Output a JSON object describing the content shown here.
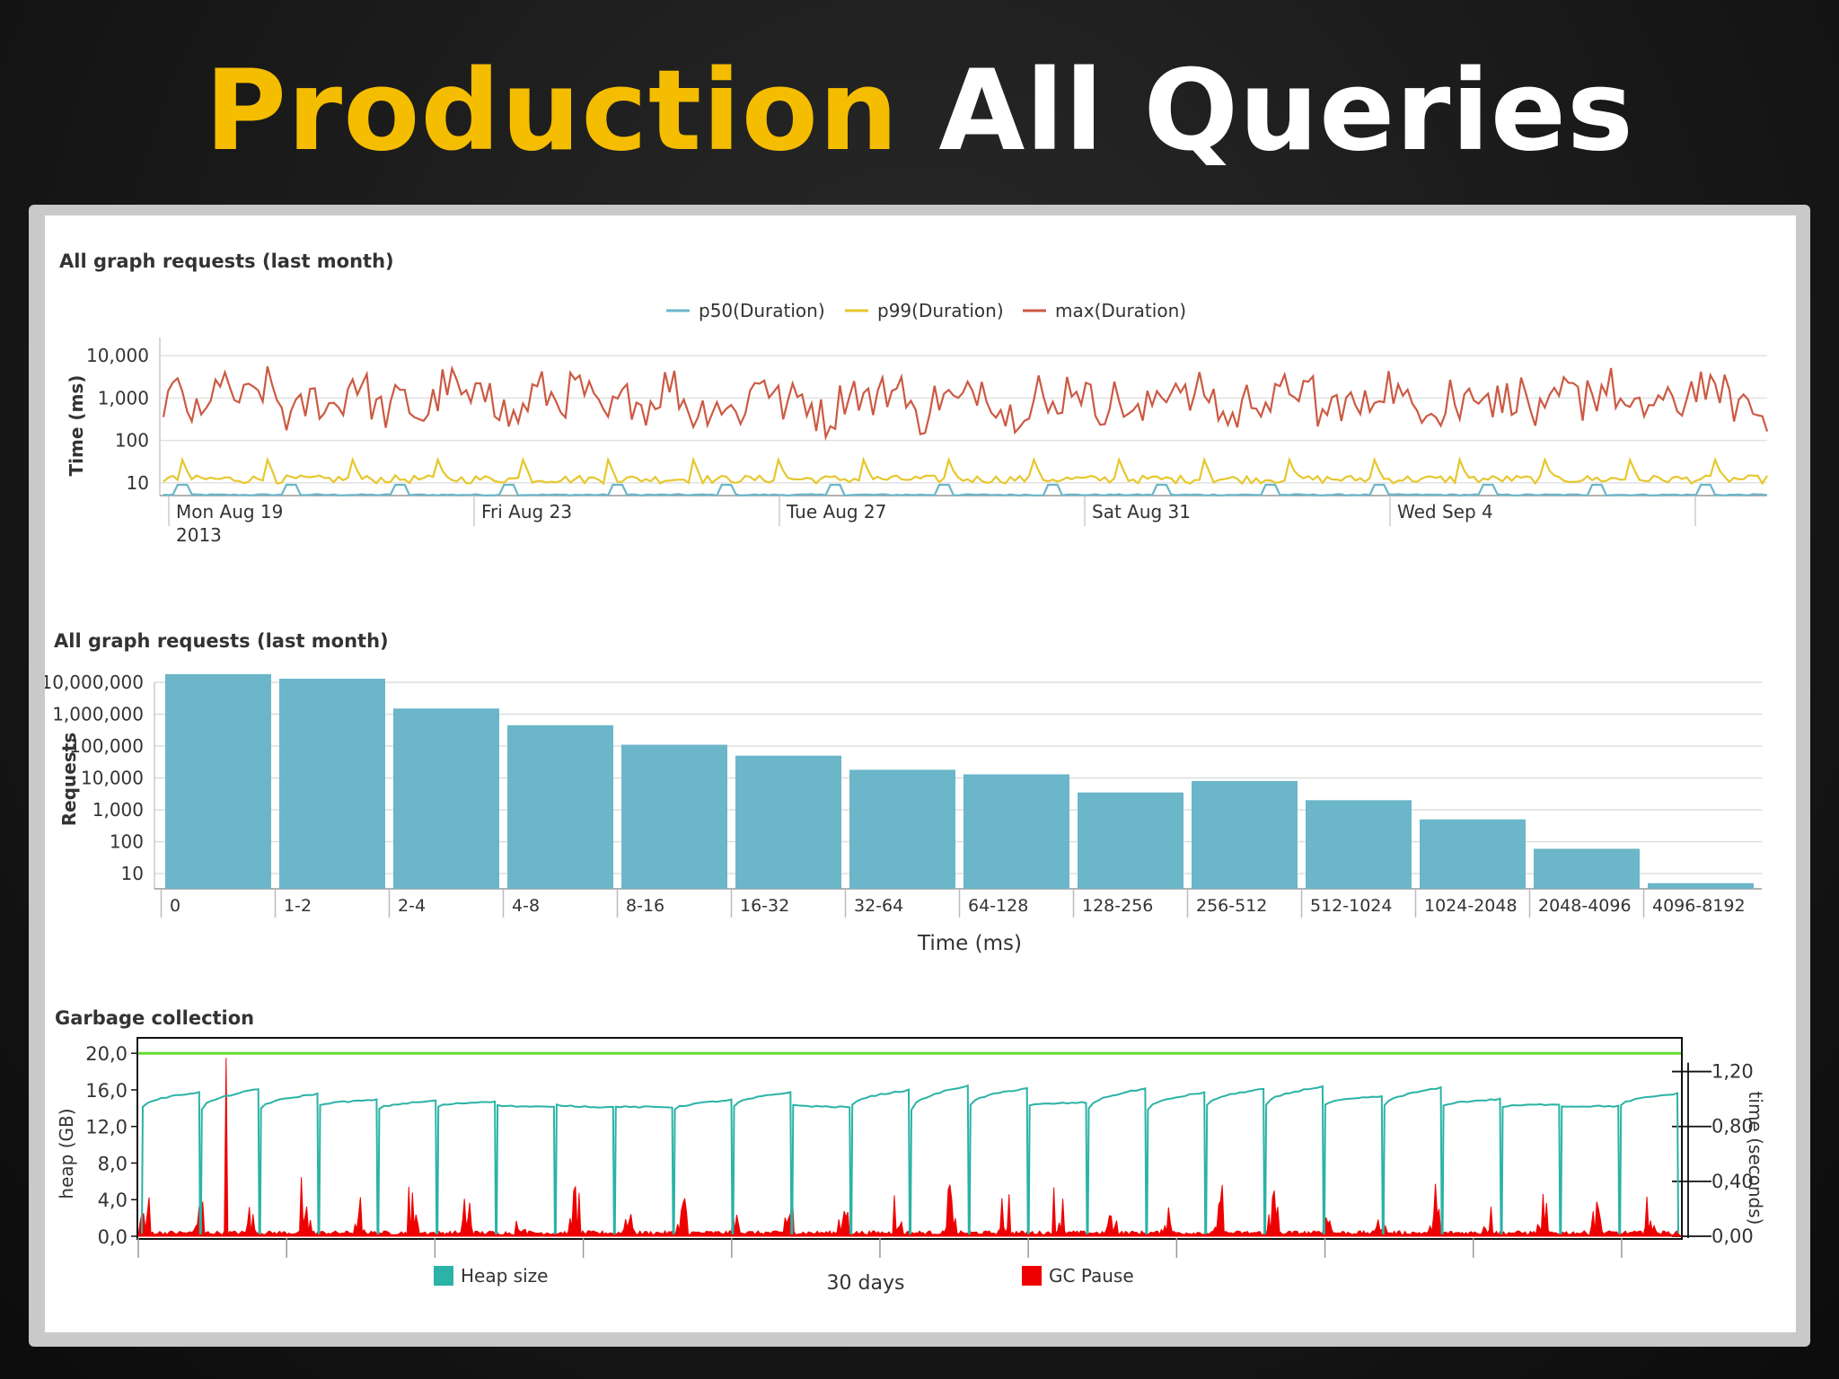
{
  "slide": {
    "title_part1": "Production",
    "title_part2": "All Queries",
    "accent_color": "#f5bd00"
  },
  "chart_data": [
    {
      "type": "line",
      "title": "All graph requests (last month)",
      "ylabel": "Time (ms)",
      "yscale": "log",
      "yticks": [
        "10,000",
        "1,000",
        "100",
        "10"
      ],
      "ylim": [
        5,
        20000
      ],
      "xticks": [
        "Mon Aug 19",
        "Fri Aug 23",
        "Tue Aug 27",
        "Sat Aug 31",
        "Wed Sep 4"
      ],
      "xtick_sublabel": "2013",
      "grid": true,
      "legend": "top-center",
      "series": [
        {
          "name": "p50(Duration)",
          "color": "#6bb6c9",
          "typical_ms": 5,
          "spike_ms": 9
        },
        {
          "name": "p99(Duration)",
          "color": "#e6c72e",
          "typical_ms": 12,
          "spike_ms": 35
        },
        {
          "name": "max(Duration)",
          "color": "#cc5a43",
          "typical_ms": 300,
          "spike_ms": 3000
        }
      ]
    },
    {
      "type": "bar",
      "title": "All graph requests (last month)",
      "ylabel": "Requests",
      "xlabel": "Time (ms)",
      "yscale": "log",
      "yticks": [
        "10,000,000",
        "1,000,000",
        "100,000",
        "10,000",
        "1,000",
        "100",
        "10"
      ],
      "categories": [
        "0",
        "1-2",
        "2-4",
        "4-8",
        "8-16",
        "16-32",
        "32-64",
        "64-128",
        "128-256",
        "256-512",
        "512-1024",
        "1024-2048",
        "2048-4096",
        "4096-8192"
      ],
      "values": [
        18000000,
        13000000,
        1500000,
        450000,
        110000,
        50000,
        18000,
        13000,
        3500,
        8000,
        2000,
        500,
        60,
        5
      ],
      "color": "#6bb6c9"
    },
    {
      "type": "line",
      "title": "Garbage collection",
      "xlabel": "30 days",
      "ylabel": "heap (GB)",
      "y2label": "time (seconds)",
      "yticks": [
        "20,0",
        "16,0",
        "12,0",
        "8,0",
        "4,0",
        "0,0"
      ],
      "ylim": [
        0,
        21
      ],
      "y2ticks": [
        "1,20",
        "0,80",
        "0,40",
        "0,00"
      ],
      "y2lim": [
        0,
        1.4
      ],
      "legend": "bottom",
      "heap_limit_gb": 20,
      "series": [
        {
          "name": "Heap size",
          "color": "#2ab3a6",
          "min_gb": 13.8,
          "max_gb": 16.3
        },
        {
          "name": "GC Pause",
          "color": "#ee0000",
          "typical_s": 0.05,
          "max_s": 1.3
        }
      ],
      "limit_line_color": "#66dd33"
    }
  ]
}
